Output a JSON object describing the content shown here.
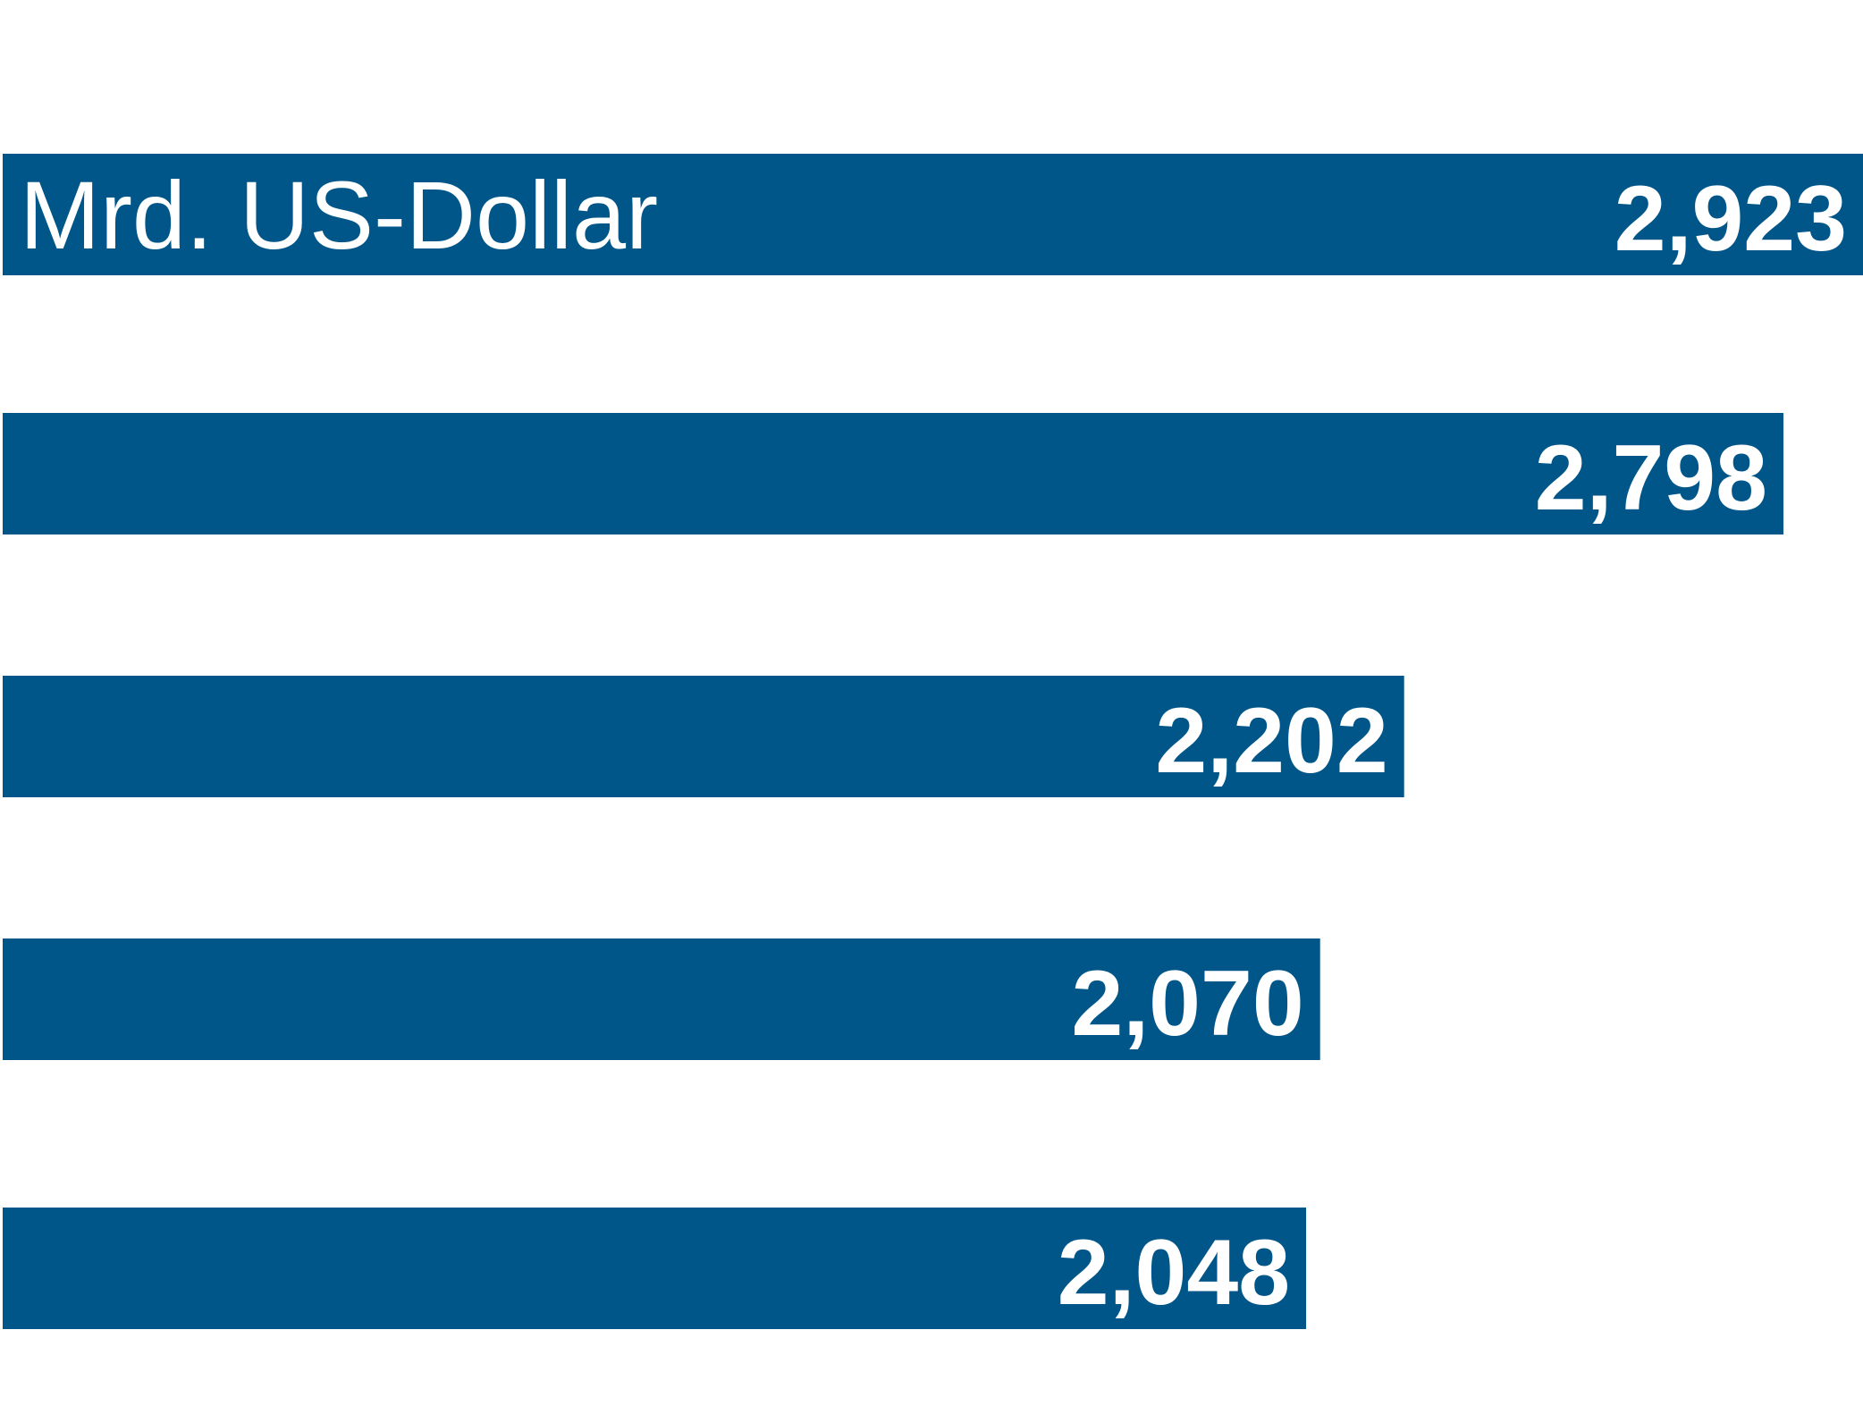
{
  "chart_data": {
    "type": "bar",
    "orientation": "horizontal",
    "unit_label": "Mrd. US-Dollar",
    "values": [
      2.923,
      2.798,
      2.202,
      2.07,
      2.048
    ],
    "value_labels": [
      "2,923",
      "2,798",
      "2,202",
      "2,070",
      "2,048"
    ],
    "xlim": [
      0,
      2.923
    ],
    "grid": false,
    "bar_color": "#005689",
    "label_color": "#ffffff"
  }
}
